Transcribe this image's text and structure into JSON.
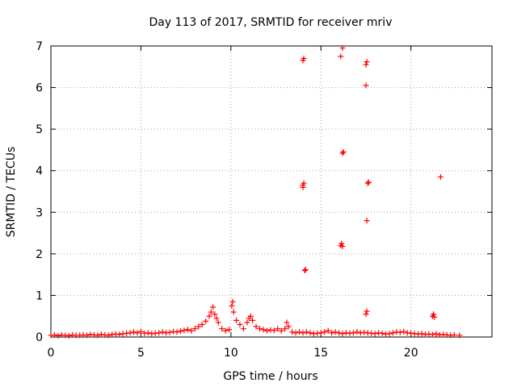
{
  "chart_data": {
    "type": "scatter",
    "title": "Day 113 of 2017, SRMTID for receiver mriv",
    "xlabel": "GPS time / hours",
    "ylabel": "SRMTID / TECUs",
    "xlim": [
      0,
      24.5
    ],
    "ylim": [
      0,
      7
    ],
    "xticks": [
      "0",
      "5",
      "10",
      "15",
      "20"
    ],
    "yticks": [
      "0",
      "1",
      "2",
      "3",
      "4",
      "5",
      "6",
      "7"
    ],
    "grid": true,
    "marker": "+",
    "color": "#ff0000",
    "series": [
      {
        "name": "SRMTID",
        "points": [
          [
            0.0,
            0.04
          ],
          [
            0.2,
            0.05
          ],
          [
            0.4,
            0.03
          ],
          [
            0.6,
            0.05
          ],
          [
            0.8,
            0.04
          ],
          [
            1.0,
            0.03
          ],
          [
            1.2,
            0.05
          ],
          [
            1.4,
            0.04
          ],
          [
            1.6,
            0.04
          ],
          [
            1.8,
            0.05
          ],
          [
            2.0,
            0.04
          ],
          [
            2.2,
            0.06
          ],
          [
            2.4,
            0.05
          ],
          [
            2.6,
            0.04
          ],
          [
            2.8,
            0.06
          ],
          [
            3.0,
            0.05
          ],
          [
            3.2,
            0.04
          ],
          [
            3.4,
            0.06
          ],
          [
            3.6,
            0.07
          ],
          [
            3.8,
            0.06
          ],
          [
            4.0,
            0.08
          ],
          [
            4.2,
            0.09
          ],
          [
            4.4,
            0.1
          ],
          [
            4.6,
            0.12
          ],
          [
            4.8,
            0.1
          ],
          [
            5.0,
            0.13
          ],
          [
            5.2,
            0.09
          ],
          [
            5.4,
            0.1
          ],
          [
            5.6,
            0.08
          ],
          [
            5.8,
            0.09
          ],
          [
            6.0,
            0.1
          ],
          [
            6.2,
            0.12
          ],
          [
            6.4,
            0.1
          ],
          [
            6.6,
            0.11
          ],
          [
            6.8,
            0.13
          ],
          [
            7.0,
            0.12
          ],
          [
            7.2,
            0.14
          ],
          [
            7.4,
            0.16
          ],
          [
            7.6,
            0.18
          ],
          [
            7.8,
            0.15
          ],
          [
            8.0,
            0.2
          ],
          [
            8.2,
            0.25
          ],
          [
            8.4,
            0.3
          ],
          [
            8.6,
            0.38
          ],
          [
            8.8,
            0.5
          ],
          [
            8.9,
            0.6
          ],
          [
            9.0,
            0.72
          ],
          [
            9.1,
            0.55
          ],
          [
            9.2,
            0.45
          ],
          [
            9.3,
            0.35
          ],
          [
            9.5,
            0.2
          ],
          [
            9.7,
            0.15
          ],
          [
            9.9,
            0.18
          ],
          [
            10.05,
            0.75
          ],
          [
            10.1,
            0.85
          ],
          [
            10.15,
            0.6
          ],
          [
            10.3,
            0.4
          ],
          [
            10.5,
            0.3
          ],
          [
            10.7,
            0.2
          ],
          [
            10.9,
            0.35
          ],
          [
            11.0,
            0.45
          ],
          [
            11.1,
            0.5
          ],
          [
            11.2,
            0.4
          ],
          [
            11.4,
            0.25
          ],
          [
            11.6,
            0.2
          ],
          [
            11.8,
            0.18
          ],
          [
            12.0,
            0.15
          ],
          [
            12.2,
            0.17
          ],
          [
            12.4,
            0.16
          ],
          [
            12.6,
            0.2
          ],
          [
            12.8,
            0.15
          ],
          [
            13.0,
            0.2
          ],
          [
            13.1,
            0.35
          ],
          [
            13.2,
            0.25
          ],
          [
            13.4,
            0.12
          ],
          [
            13.6,
            0.1
          ],
          [
            13.8,
            0.12
          ],
          [
            14.0,
            0.1
          ],
          [
            14.2,
            0.12
          ],
          [
            14.4,
            0.1
          ],
          [
            14.6,
            0.08
          ],
          [
            14.8,
            0.09
          ],
          [
            15.0,
            0.1
          ],
          [
            15.2,
            0.12
          ],
          [
            15.4,
            0.15
          ],
          [
            15.6,
            0.1
          ],
          [
            15.8,
            0.12
          ],
          [
            16.0,
            0.1
          ],
          [
            16.2,
            0.08
          ],
          [
            16.4,
            0.1
          ],
          [
            16.6,
            0.09
          ],
          [
            16.8,
            0.1
          ],
          [
            17.0,
            0.12
          ],
          [
            17.2,
            0.1
          ],
          [
            17.4,
            0.11
          ],
          [
            17.6,
            0.1
          ],
          [
            17.8,
            0.09
          ],
          [
            18.0,
            0.08
          ],
          [
            18.2,
            0.1
          ],
          [
            18.4,
            0.09
          ],
          [
            18.6,
            0.07
          ],
          [
            18.8,
            0.08
          ],
          [
            19.0,
            0.1
          ],
          [
            19.2,
            0.12
          ],
          [
            19.4,
            0.11
          ],
          [
            19.6,
            0.13
          ],
          [
            19.8,
            0.1
          ],
          [
            20.0,
            0.09
          ],
          [
            20.2,
            0.08
          ],
          [
            20.4,
            0.07
          ],
          [
            20.6,
            0.08
          ],
          [
            20.8,
            0.06
          ],
          [
            21.0,
            0.07
          ],
          [
            21.2,
            0.06
          ],
          [
            21.4,
            0.08
          ],
          [
            21.6,
            0.05
          ],
          [
            21.8,
            0.06
          ],
          [
            22.0,
            0.05
          ],
          [
            22.2,
            0.04
          ],
          [
            22.4,
            0.05
          ],
          [
            22.7,
            0.04
          ],
          [
            14.0,
            6.65
          ],
          [
            14.05,
            6.7
          ],
          [
            14.0,
            3.6
          ],
          [
            14.05,
            3.7
          ],
          [
            14.0,
            3.65
          ],
          [
            14.1,
            1.6
          ],
          [
            14.15,
            1.62
          ],
          [
            16.1,
            6.75
          ],
          [
            16.2,
            6.95
          ],
          [
            16.2,
            4.42
          ],
          [
            16.25,
            4.45
          ],
          [
            16.1,
            2.2
          ],
          [
            16.15,
            2.25
          ],
          [
            16.2,
            2.18
          ],
          [
            17.5,
            6.55
          ],
          [
            17.55,
            6.62
          ],
          [
            17.5,
            6.05
          ],
          [
            17.6,
            3.7
          ],
          [
            17.65,
            3.72
          ],
          [
            17.55,
            2.8
          ],
          [
            17.5,
            0.55
          ],
          [
            17.55,
            0.62
          ],
          [
            21.2,
            0.5
          ],
          [
            21.25,
            0.55
          ],
          [
            21.3,
            0.48
          ],
          [
            21.65,
            3.85
          ]
        ]
      }
    ]
  }
}
